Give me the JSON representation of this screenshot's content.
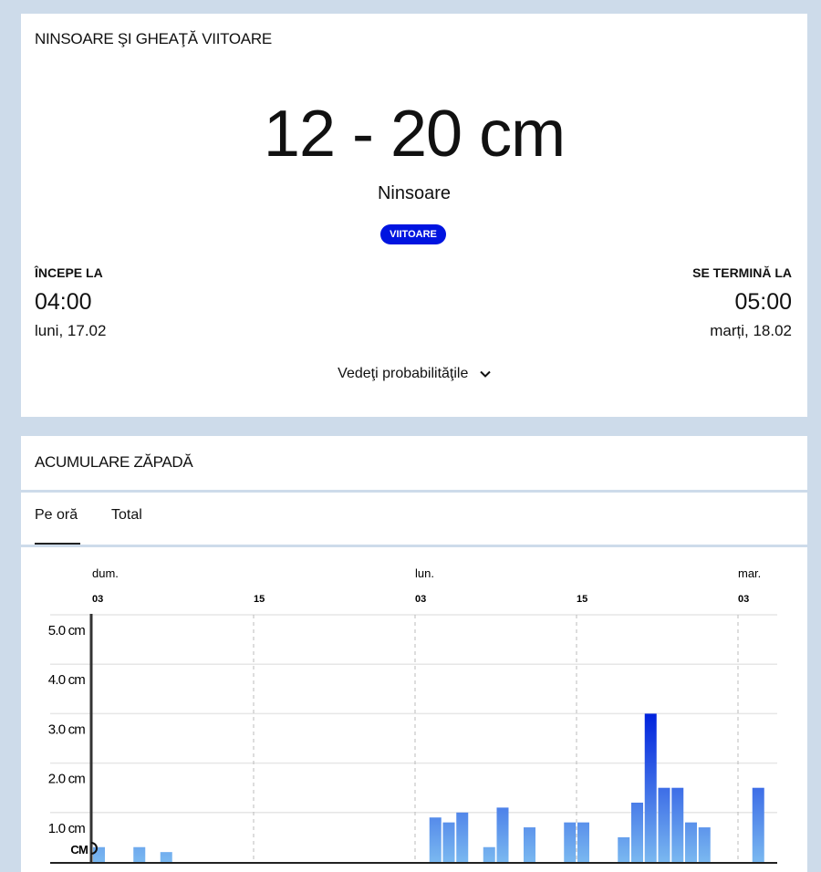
{
  "card1": {
    "title": "NINSOARE ŞI GHEAŢĂ VIITOARE",
    "amount": "12 - 20 cm",
    "precip_type": "Ninsoare",
    "badge": "VIITOARE",
    "badge_color": "#0014e0",
    "start_label": "ÎNCEPE LA",
    "start_time": "04:00",
    "start_date": "luni, 17.02",
    "end_label": "SE TERMINĂ LA",
    "end_time": "05:00",
    "end_date": "marți, 18.02",
    "probabilities_link": "Vedeţi probabilităţile",
    "probabilities_icon": "chevron-down-icon"
  },
  "card2": {
    "title": "ACUMULARE ZĂPADĂ",
    "tabs": [
      {
        "label": "Pe oră",
        "active": true
      },
      {
        "label": "Total",
        "active": false
      }
    ],
    "now_label": "CM"
  },
  "chart_data": {
    "type": "bar",
    "x_day_labels": [
      {
        "day": "dum.",
        "hour": "03"
      },
      {
        "day": "lun.",
        "hour": "03"
      },
      {
        "day": "mar.",
        "hour": "03"
      }
    ],
    "x_tick_labels": [
      "03",
      "15",
      "03",
      "15",
      "03"
    ],
    "y_tick_labels": [
      "1.0 cm",
      "2.0 cm",
      "3.0 cm",
      "4.0 cm",
      "5.0 cm"
    ],
    "ylim": [
      0,
      5
    ],
    "unit": "cm",
    "grid": true,
    "bar_color_top": "#0022dd",
    "bar_color_bottom": "#7ab8f0",
    "bars": [
      {
        "day": "dum.",
        "hour": 3,
        "value": 0.3
      },
      {
        "day": "dum.",
        "hour": 6,
        "value": 0.3
      },
      {
        "day": "dum.",
        "hour": 8,
        "value": 0.2
      },
      {
        "day": "lun.",
        "hour": 4,
        "value": 0.9
      },
      {
        "day": "lun.",
        "hour": 5,
        "value": 0.8
      },
      {
        "day": "lun.",
        "hour": 6,
        "value": 1.0
      },
      {
        "day": "lun.",
        "hour": 8,
        "value": 0.3
      },
      {
        "day": "lun.",
        "hour": 9,
        "value": 1.1
      },
      {
        "day": "lun.",
        "hour": 11,
        "value": 0.7
      },
      {
        "day": "lun.",
        "hour": 14,
        "value": 0.8
      },
      {
        "day": "lun.",
        "hour": 15,
        "value": 0.8
      },
      {
        "day": "lun.",
        "hour": 18,
        "value": 0.5
      },
      {
        "day": "lun.",
        "hour": 19,
        "value": 1.2
      },
      {
        "day": "lun.",
        "hour": 20,
        "value": 3.0
      },
      {
        "day": "lun.",
        "hour": 21,
        "value": 1.5
      },
      {
        "day": "lun.",
        "hour": 22,
        "value": 1.5
      },
      {
        "day": "lun.",
        "hour": 23,
        "value": 0.8
      },
      {
        "day": "mar.",
        "hour": 0,
        "value": 0.7
      },
      {
        "day": "mar.",
        "hour": 4,
        "value": 1.5
      }
    ]
  }
}
